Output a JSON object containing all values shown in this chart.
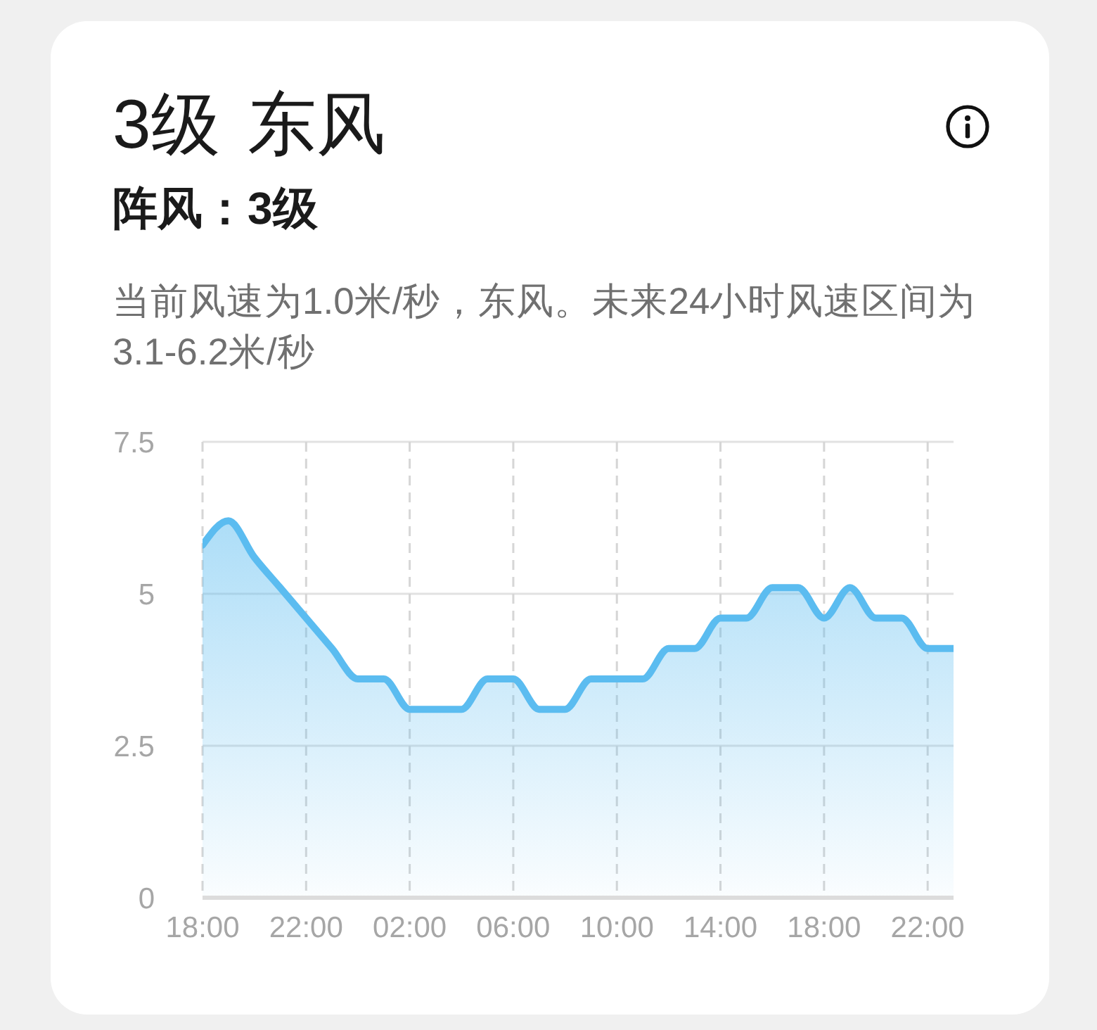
{
  "chart_data": {
    "type": "area",
    "title": "3级 东风",
    "subtitle": "阵风：3级",
    "annotations": [
      "当前风速为1.0米/秒，东风。未来24小时风速区间为3.1-6.2米/秒"
    ],
    "categories": [
      "18:00",
      null,
      null,
      null,
      "22:00",
      null,
      null,
      null,
      "02:00",
      null,
      null,
      null,
      "06:00",
      null,
      null,
      null,
      "10:00",
      null,
      null,
      null,
      "14:00",
      null,
      null,
      null,
      "18:00",
      null,
      null,
      null,
      "22:00",
      null
    ],
    "values": [
      5.8,
      6.2,
      5.6,
      5.1,
      4.6,
      4.1,
      3.6,
      3.6,
      3.1,
      3.1,
      3.1,
      3.6,
      3.6,
      3.1,
      3.1,
      3.6,
      3.6,
      3.6,
      4.1,
      4.1,
      4.6,
      4.6,
      5.1,
      5.1,
      4.6,
      5.1,
      4.6,
      4.6,
      4.1,
      4.1
    ],
    "color": "#5bbcf0",
    "ylim": [
      0,
      7.5
    ],
    "yticks": [
      0,
      2.5,
      5,
      7.5
    ],
    "grid": true
  }
}
